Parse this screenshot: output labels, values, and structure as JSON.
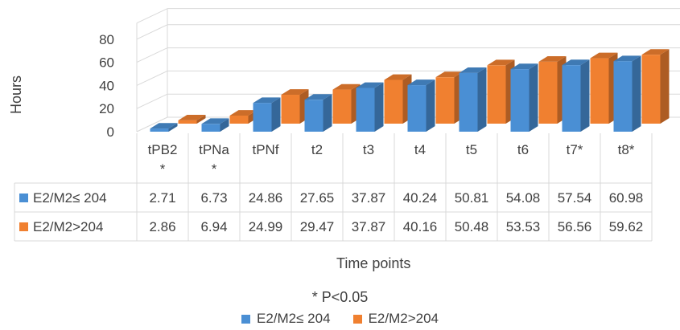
{
  "chart_data": {
    "type": "bar",
    "style": "3d-clustered-column-with-data-table",
    "title": "",
    "xlabel": "Time points",
    "ylabel": "Hours",
    "ylim": [
      0,
      80
    ],
    "yticks": [
      0,
      20,
      40,
      60,
      80
    ],
    "categories": [
      "tPB2 *",
      "tPNa *",
      "tPNf",
      "t2",
      "t3",
      "t4",
      "t5",
      "t6",
      "t7*",
      "t8*"
    ],
    "category_lines": [
      [
        "tPB2",
        "*"
      ],
      [
        "tPNa",
        "*"
      ],
      [
        "tPNf"
      ],
      [
        "t2"
      ],
      [
        "t3"
      ],
      [
        "t4"
      ],
      [
        "t5"
      ],
      [
        "t6"
      ],
      [
        "t7*"
      ],
      [
        "t8*"
      ]
    ],
    "series": [
      {
        "name": "E2/M2≤ 204",
        "color": "#4a8fd4",
        "values": [
          2.71,
          6.73,
          24.86,
          27.65,
          37.87,
          40.24,
          50.81,
          54.08,
          57.54,
          60.98
        ],
        "labels": [
          "2.71",
          "6.73",
          "24.86",
          "27.65",
          "37.87",
          "40.24",
          "50.81",
          "54.08",
          "57.54",
          "60.98"
        ]
      },
      {
        "name": "E2/M2>204",
        "color": "#f08030",
        "values": [
          2.86,
          6.94,
          24.99,
          29.47,
          37.87,
          40.16,
          50.48,
          53.53,
          56.56,
          59.62
        ],
        "labels": [
          "2.86",
          "6.94",
          "24.99",
          "29.47",
          "37.87",
          "40.16",
          "50.48",
          "53.53",
          "56.56",
          "59.62"
        ]
      }
    ],
    "annotation": "* P<0.05",
    "legend_position": "bottom",
    "grid": true
  }
}
